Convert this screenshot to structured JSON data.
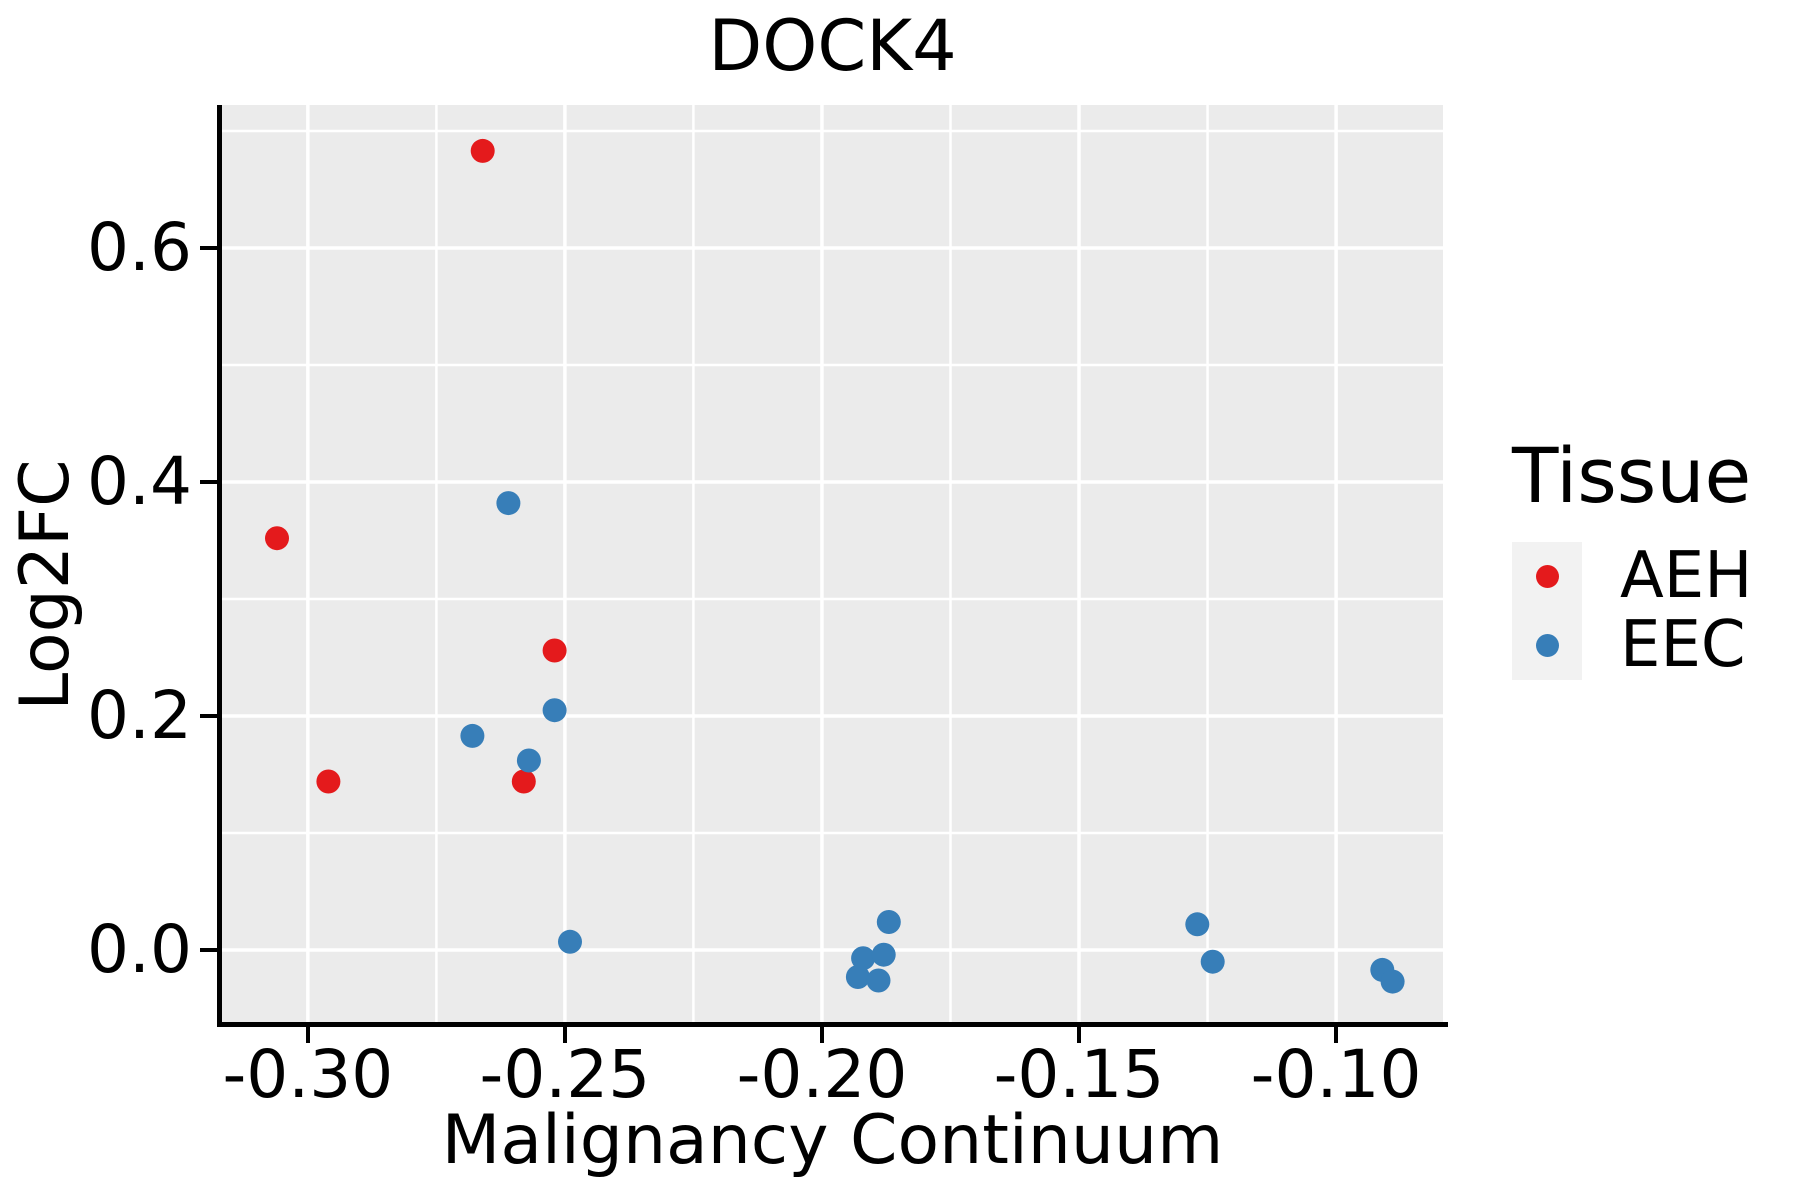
{
  "chart_data": {
    "type": "scatter",
    "title": "DOCK4",
    "xlabel": "Malignancy Continuum",
    "ylabel": "Log2FC",
    "xlim": [
      -0.3167,
      -0.0792
    ],
    "ylim": [
      -0.0615,
      0.7222
    ],
    "x_tick_values": [
      -0.3,
      -0.25,
      -0.2,
      -0.15,
      -0.1
    ],
    "x_tick_labels": [
      "-0.30",
      "-0.25",
      "-0.20",
      "-0.15",
      "-0.10"
    ],
    "y_tick_values": [
      0.0,
      0.2,
      0.4,
      0.6
    ],
    "y_tick_labels": [
      "0.0",
      "0.2",
      "0.4",
      "0.6"
    ],
    "x_minor_ticks": [
      -0.275,
      -0.225,
      -0.175,
      -0.125
    ],
    "y_minor_ticks": [
      0.1,
      0.3,
      0.5,
      0.7
    ],
    "grid": true,
    "legend_position": "right",
    "point_radius": 12,
    "legend": {
      "title": "Tissue",
      "entries": [
        {
          "label": "AEH",
          "color": "#E41A1C"
        },
        {
          "label": "EEC",
          "color": "#377EB8"
        }
      ]
    },
    "series": [
      {
        "name": "AEH",
        "color": "#E41A1C",
        "points": [
          [
            -0.306,
            0.352
          ],
          [
            -0.296,
            0.144
          ],
          [
            -0.266,
            0.683
          ],
          [
            -0.258,
            0.144
          ],
          [
            -0.252,
            0.256
          ]
        ]
      },
      {
        "name": "EEC",
        "color": "#377EB8",
        "points": [
          [
            -0.268,
            0.183
          ],
          [
            -0.261,
            0.382
          ],
          [
            -0.257,
            0.162
          ],
          [
            -0.252,
            0.205
          ],
          [
            -0.249,
            0.007
          ],
          [
            -0.193,
            -0.023
          ],
          [
            -0.192,
            -0.007
          ],
          [
            -0.189,
            -0.026
          ],
          [
            -0.188,
            -0.004
          ],
          [
            -0.187,
            0.024
          ],
          [
            -0.127,
            0.022
          ],
          [
            -0.124,
            -0.01
          ],
          [
            -0.091,
            -0.017
          ],
          [
            -0.089,
            -0.027
          ]
        ]
      }
    ],
    "colors": {
      "panel_background": "#EBEBEB",
      "gridline": "#FFFFFF",
      "legend_key_background": "#F2F2F2",
      "axis_line": "#000000",
      "text": "#000000"
    }
  }
}
